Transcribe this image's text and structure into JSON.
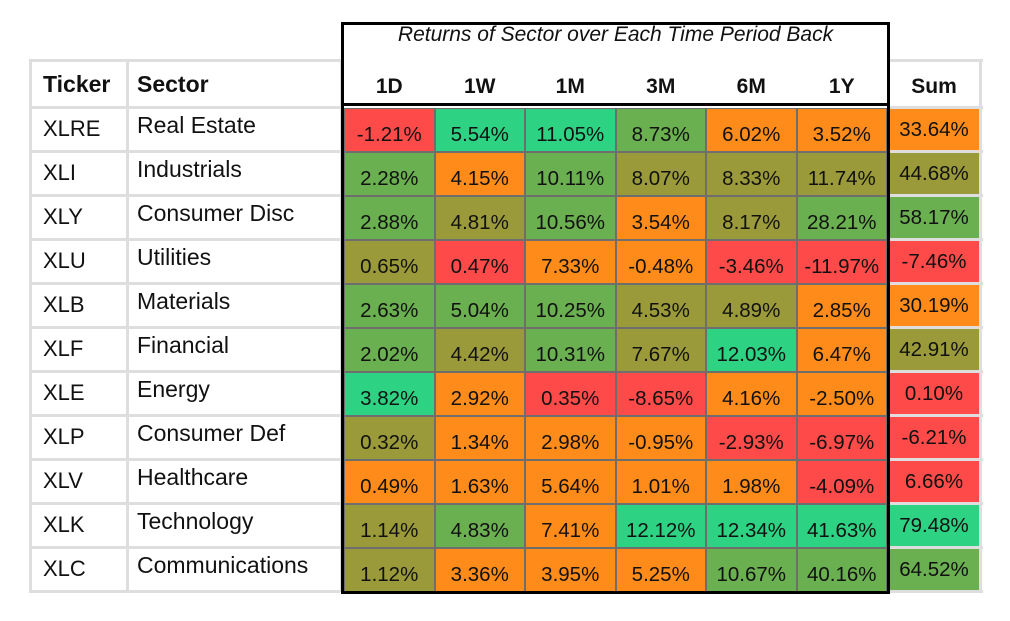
{
  "chart_data": {
    "type": "table",
    "title": "Returns of Sector over Each Time Period Back",
    "row_headers": [
      "Ticker",
      "Sector"
    ],
    "columns": [
      "1D",
      "1W",
      "1M",
      "3M",
      "6M",
      "1Y"
    ],
    "sum_label": "Sum",
    "rows": [
      {
        "ticker": "XLRE",
        "sector": "Real Estate",
        "values": [
          "-1.21%",
          "5.54%",
          "11.05%",
          "8.73%",
          "6.02%",
          "3.52%"
        ],
        "sum": "33.64%"
      },
      {
        "ticker": "XLI",
        "sector": "Industrials",
        "values": [
          "2.28%",
          "4.15%",
          "10.11%",
          "8.07%",
          "8.33%",
          "11.74%"
        ],
        "sum": "44.68%"
      },
      {
        "ticker": "XLY",
        "sector": "Consumer Disc",
        "values": [
          "2.88%",
          "4.81%",
          "10.56%",
          "3.54%",
          "8.17%",
          "28.21%"
        ],
        "sum": "58.17%"
      },
      {
        "ticker": "XLU",
        "sector": "Utilities",
        "values": [
          "0.65%",
          "0.47%",
          "7.33%",
          "-0.48%",
          "-3.46%",
          "-11.97%"
        ],
        "sum": "-7.46%"
      },
      {
        "ticker": "XLB",
        "sector": "Materials",
        "values": [
          "2.63%",
          "5.04%",
          "10.25%",
          "4.53%",
          "4.89%",
          "2.85%"
        ],
        "sum": "30.19%"
      },
      {
        "ticker": "XLF",
        "sector": "Financial",
        "values": [
          "2.02%",
          "4.42%",
          "10.31%",
          "7.67%",
          "12.03%",
          "6.47%"
        ],
        "sum": "42.91%"
      },
      {
        "ticker": "XLE",
        "sector": "Energy",
        "values": [
          "3.82%",
          "2.92%",
          "0.35%",
          "-8.65%",
          "4.16%",
          "-2.50%"
        ],
        "sum": "0.10%"
      },
      {
        "ticker": "XLP",
        "sector": "Consumer Def",
        "values": [
          "0.32%",
          "1.34%",
          "2.98%",
          "-0.95%",
          "-2.93%",
          "-6.97%"
        ],
        "sum": "-6.21%"
      },
      {
        "ticker": "XLV",
        "sector": "Healthcare",
        "values": [
          "0.49%",
          "1.63%",
          "5.64%",
          "1.01%",
          "1.98%",
          "-4.09%"
        ],
        "sum": "6.66%"
      },
      {
        "ticker": "XLK",
        "sector": "Technology",
        "values": [
          "1.14%",
          "4.83%",
          "7.41%",
          "12.12%",
          "12.34%",
          "41.63%"
        ],
        "sum": "79.48%"
      },
      {
        "ticker": "XLC",
        "sector": "Communications",
        "values": [
          "1.12%",
          "3.36%",
          "3.95%",
          "5.25%",
          "10.67%",
          "40.16%"
        ],
        "sum": "64.52%"
      }
    ],
    "colors": {
      "high": "#2dd383",
      "mid_high": "#6aaf50",
      "mid": "#9a9a3a",
      "mid_low": "#ff8c1a",
      "low": "#ff4a4a"
    }
  }
}
